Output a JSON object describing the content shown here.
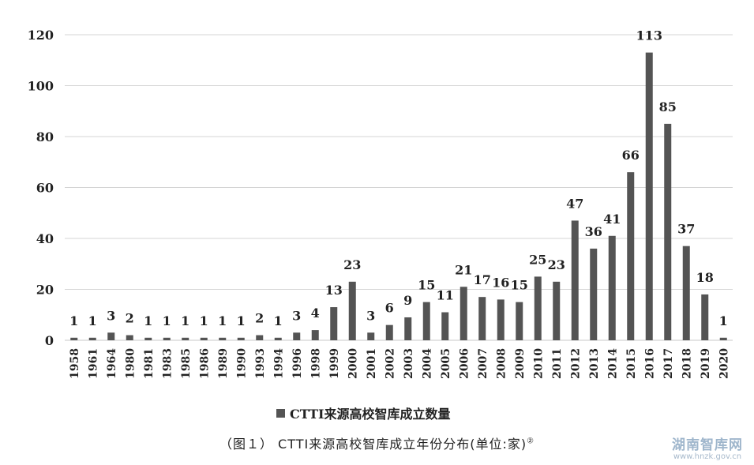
{
  "chart_data": {
    "type": "bar",
    "categories": [
      "1958",
      "1961",
      "1964",
      "1980",
      "1981",
      "1983",
      "1985",
      "1986",
      "1989",
      "1990",
      "1993",
      "1994",
      "1996",
      "1998",
      "1999",
      "2000",
      "2001",
      "2002",
      "2003",
      "2004",
      "2005",
      "2006",
      "2007",
      "2008",
      "2009",
      "2010",
      "2011",
      "2012",
      "2013",
      "2014",
      "2015",
      "2016",
      "2017",
      "2018",
      "2019",
      "2020"
    ],
    "series": [
      {
        "name": "CTTI来源高校智库成立数量",
        "values": [
          1,
          1,
          3,
          2,
          1,
          1,
          1,
          1,
          1,
          1,
          2,
          1,
          3,
          4,
          13,
          23,
          3,
          6,
          9,
          15,
          11,
          21,
          17,
          16,
          15,
          25,
          23,
          47,
          36,
          41,
          66,
          113,
          85,
          37,
          18,
          1
        ]
      }
    ],
    "ylim": [
      0,
      120
    ],
    "yticks": [
      0,
      20,
      40,
      60,
      80,
      100,
      120
    ],
    "grid": true,
    "legend_position": "bottom",
    "data_labels": true,
    "colors": {
      "bar": "#545454",
      "grid": "#d4d4d4",
      "axis": "#c8c8c8"
    }
  },
  "caption": {
    "text": "（图１） CTTI来源高校智库成立年份分布(单位:家)",
    "note_mark": "②"
  },
  "watermark": {
    "name": "湖南智库网",
    "url": "www.hnzk.gov.cn"
  }
}
